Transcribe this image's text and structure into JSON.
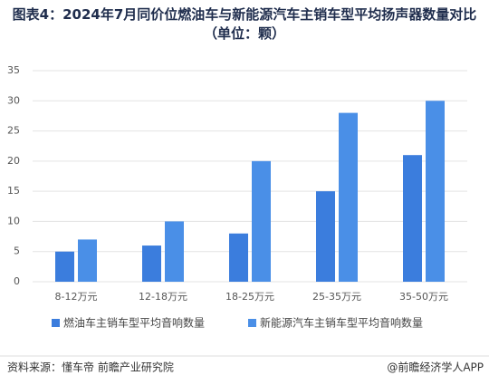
{
  "chart_data": {
    "type": "bar",
    "title": "图表4：2024年7月同价位燃油车与新能源汽车主销车型平均扬声器数量对比（单位：颗）",
    "categories": [
      "8-12万元",
      "12-18万元",
      "18-25万元",
      "25-35万元",
      "35-50万元"
    ],
    "series": [
      {
        "name": "燃油车主销车型平均音响数量",
        "color": "#3b7ddd",
        "values": [
          5,
          6,
          8,
          15,
          21
        ]
      },
      {
        "name": "新能源汽车主销车型平均音响数量",
        "color": "#4a8fe7",
        "values": [
          7,
          10,
          20,
          28,
          30
        ]
      }
    ],
    "ylim": [
      0,
      35
    ],
    "yticks": [
      0,
      5,
      10,
      15,
      20,
      25,
      30,
      35
    ],
    "grid": true,
    "legend": "bottom",
    "source": "资料来源：懂车帝 前瞻产业研究院",
    "credit": "@前瞻经济学人APP"
  }
}
